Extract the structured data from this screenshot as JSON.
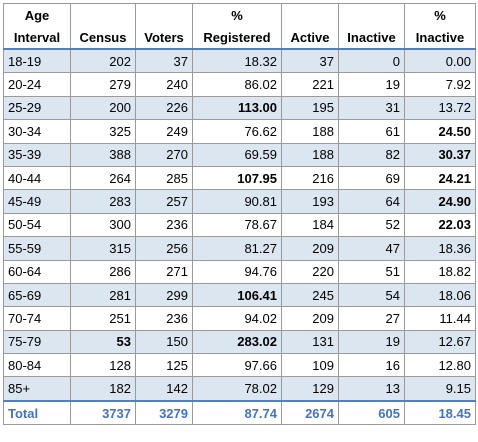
{
  "header": {
    "row1": [
      "Age",
      "",
      "",
      "%",
      "",
      "",
      "%"
    ],
    "row2": [
      "Interval",
      "Census",
      "Voters",
      "Registered",
      "Active",
      "Inactive",
      "Inactive"
    ]
  },
  "rows": [
    {
      "cells": [
        "18-19",
        "202",
        "37",
        "18.32",
        "37",
        "0",
        "0.00"
      ],
      "bold": []
    },
    {
      "cells": [
        "20-24",
        "279",
        "240",
        "86.02",
        "221",
        "19",
        "7.92"
      ],
      "bold": []
    },
    {
      "cells": [
        "25-29",
        "200",
        "226",
        "113.00",
        "195",
        "31",
        "13.72"
      ],
      "bold": [
        3
      ]
    },
    {
      "cells": [
        "30-34",
        "325",
        "249",
        "76.62",
        "188",
        "61",
        "24.50"
      ],
      "bold": [
        6
      ]
    },
    {
      "cells": [
        "35-39",
        "388",
        "270",
        "69.59",
        "188",
        "82",
        "30.37"
      ],
      "bold": [
        6
      ]
    },
    {
      "cells": [
        "40-44",
        "264",
        "285",
        "107.95",
        "216",
        "69",
        "24.21"
      ],
      "bold": [
        3,
        6
      ]
    },
    {
      "cells": [
        "45-49",
        "283",
        "257",
        "90.81",
        "193",
        "64",
        "24.90"
      ],
      "bold": [
        6
      ]
    },
    {
      "cells": [
        "50-54",
        "300",
        "236",
        "78.67",
        "184",
        "52",
        "22.03"
      ],
      "bold": [
        6
      ]
    },
    {
      "cells": [
        "55-59",
        "315",
        "256",
        "81.27",
        "209",
        "47",
        "18.36"
      ],
      "bold": []
    },
    {
      "cells": [
        "60-64",
        "286",
        "271",
        "94.76",
        "220",
        "51",
        "18.82"
      ],
      "bold": []
    },
    {
      "cells": [
        "65-69",
        "281",
        "299",
        "106.41",
        "245",
        "54",
        "18.06"
      ],
      "bold": [
        3
      ]
    },
    {
      "cells": [
        "70-74",
        "251",
        "236",
        "94.02",
        "209",
        "27",
        "11.44"
      ],
      "bold": []
    },
    {
      "cells": [
        "75-79",
        "53",
        "150",
        "283.02",
        "131",
        "19",
        "12.67"
      ],
      "bold": [
        1,
        3
      ]
    },
    {
      "cells": [
        "80-84",
        "128",
        "125",
        "97.66",
        "109",
        "16",
        "12.80"
      ],
      "bold": []
    },
    {
      "cells": [
        "85+",
        "182",
        "142",
        "78.02",
        "129",
        "13",
        "9.15"
      ],
      "bold": []
    }
  ],
  "total": [
    "Total",
    "3737",
    "3279",
    "87.74",
    "2674",
    "605",
    "18.45"
  ],
  "colors": {
    "row_shade": "#dce6f1",
    "total_text": "#4472c4",
    "header_rule": "#4f81bd"
  }
}
